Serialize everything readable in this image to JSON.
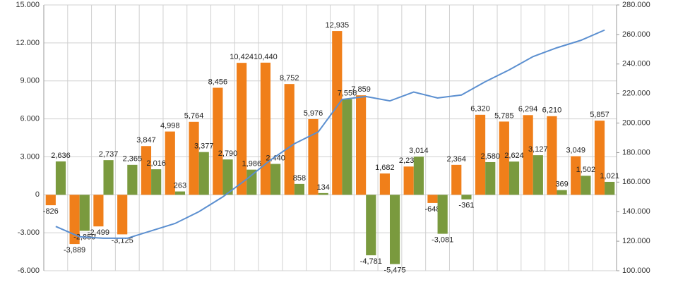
{
  "chart_data": {
    "type": "bar",
    "categories": [
      null,
      null,
      null,
      null,
      null,
      null,
      null,
      null,
      null,
      null,
      null,
      null,
      null,
      null,
      null,
      null,
      null,
      null,
      null,
      null,
      null,
      null,
      null,
      null
    ],
    "series": [
      {
        "color": "#f07f1a",
        "values": [
          -826,
          -3889,
          -2499,
          -3125,
          3847,
          4998,
          5764,
          8456,
          10424,
          10440,
          8752,
          5976,
          12935,
          7859,
          1682,
          2232,
          -648,
          2364,
          6320,
          5785,
          6294,
          6210,
          3049,
          5857
        ],
        "value_labels": [
          "-826",
          "-3,889",
          "-2,499",
          "-3,125",
          "3,847",
          "4,998",
          "5,764",
          "8,456",
          "10,424",
          "10,440",
          "8,752",
          "5,976",
          "12,935",
          "7,859",
          "1,682",
          "2,232",
          "-648",
          "2,364",
          "6,320",
          "5,785",
          "6,294",
          "6,210",
          "3,049",
          "5,857"
        ]
      },
      {
        "color": "#7a9a3e",
        "values": [
          2636,
          -2850,
          2737,
          2365,
          2016,
          263,
          3377,
          2790,
          1986,
          2440,
          858,
          134,
          7556,
          -4781,
          -5475,
          3014,
          -3081,
          -361,
          2580,
          2624,
          3127,
          369,
          1502,
          1021
        ],
        "value_labels": [
          "2,636",
          "-2,850",
          "2,737",
          "2,365",
          "2,016",
          "263",
          "3,377",
          "2,790",
          "1,986",
          "2,440",
          "858",
          "134",
          "7,556",
          "-4,781",
          "-5,475",
          "3,014",
          "-3,081",
          "-361",
          "2,580",
          "2,624",
          "3,127",
          "369",
          "1,502",
          "1,021"
        ]
      },
      {
        "type": "line",
        "axis": "y2",
        "color": "#5b8fd0",
        "values": [
          130000,
          123000,
          122000,
          122000,
          127000,
          132000,
          140000,
          150000,
          162000,
          175000,
          186000,
          194000,
          216000,
          218000,
          215000,
          221000,
          217000,
          219000,
          228000,
          236000,
          245000,
          251000,
          256000,
          263000
        ]
      }
    ],
    "ylim": [
      -6000,
      15000
    ],
    "yticks": [
      {
        "value": -6000,
        "label": "-6.000"
      },
      {
        "value": -3000,
        "label": "-3.000"
      },
      0,
      {
        "value": 3000,
        "label": "3.000"
      },
      {
        "value": 6000,
        "label": "6.000"
      },
      {
        "value": 9000,
        "label": "9.000"
      },
      {
        "value": 12000,
        "label": "12.000"
      },
      {
        "value": 15000,
        "label": "15.000"
      }
    ],
    "y2lim": [
      100000,
      280000
    ],
    "y2ticks": [
      {
        "value": 100000,
        "label": "100.000"
      },
      {
        "value": 120000,
        "label": "120.000"
      },
      {
        "value": 140000,
        "label": "140.000"
      },
      {
        "value": 160000,
        "label": "160.000"
      },
      {
        "value": 180000,
        "label": "180.000"
      },
      {
        "value": 200000,
        "label": "200.000"
      },
      {
        "value": 220000,
        "label": "220.000"
      },
      {
        "value": 240000,
        "label": "240.000"
      },
      {
        "value": 260000,
        "label": "260.000"
      },
      {
        "value": 280000,
        "label": "280.000"
      }
    ],
    "grid": true,
    "xgrid": true
  }
}
